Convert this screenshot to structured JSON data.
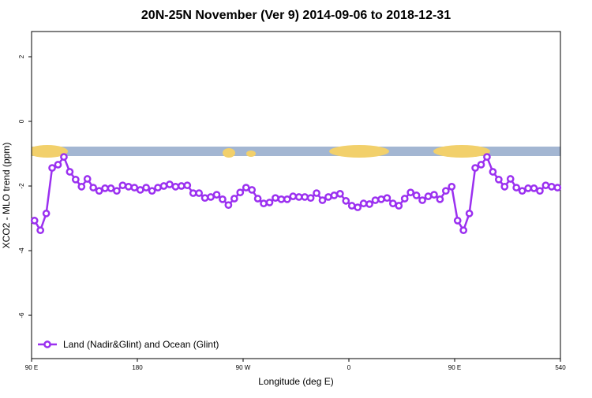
{
  "chart_data": {
    "type": "line",
    "title": "20N-25N November (Ver 9)   2014-09-06 to 2018-12-31",
    "x_label": "Longitude (deg E)",
    "y_label": "XCO2 - MLO trend (ppm)",
    "x": [
      92.5,
      97.5,
      102.5,
      107.5,
      112.5,
      117.5,
      122.5,
      127.5,
      132.5,
      137.5,
      142.5,
      147.5,
      152.5,
      157.5,
      162.5,
      167.5,
      172.5,
      177.5,
      182.5,
      187.5,
      192.5,
      197.5,
      202.5,
      207.5,
      212.5,
      217.5,
      222.5,
      227.5,
      232.5,
      237.5,
      242.5,
      247.5,
      252.5,
      257.5,
      262.5,
      267.5,
      272.5,
      277.5,
      282.5,
      287.5,
      292.5,
      297.5,
      302.5,
      307.5,
      312.5,
      317.5,
      322.5,
      327.5,
      332.5,
      337.5,
      342.5,
      347.5,
      352.5,
      357.5,
      362.5,
      367.5,
      372.5,
      377.5,
      382.5,
      387.5,
      392.5,
      397.5,
      402.5,
      407.5,
      412.5,
      417.5,
      422.5,
      427.5,
      432.5,
      437.5,
      442.5,
      447.5,
      452.5,
      457.5,
      462.5,
      467.5,
      472.5,
      477.5,
      482.5,
      487.5,
      492.5,
      497.5,
      502.5,
      507.5,
      512.5,
      517.5,
      522.5,
      527.5,
      532.5,
      537.5
    ],
    "series": [
      {
        "name": "Land (Nadir&Glint) and Ocean (Glint)",
        "color": "#9b30f0",
        "values": [
          -3.07,
          -3.37,
          -2.85,
          -1.44,
          -1.34,
          -1.1,
          -1.56,
          -1.8,
          -2.02,
          -1.78,
          -2.05,
          -2.15,
          -2.07,
          -2.07,
          -2.15,
          -1.98,
          -2.02,
          -2.05,
          -2.12,
          -2.05,
          -2.15,
          -2.05,
          -2.0,
          -1.95,
          -2.02,
          -2.0,
          -1.98,
          -2.22,
          -2.22,
          -2.37,
          -2.34,
          -2.27,
          -2.41,
          -2.59,
          -2.39,
          -2.2,
          -2.05,
          -2.12,
          -2.39,
          -2.54,
          -2.51,
          -2.37,
          -2.41,
          -2.41,
          -2.32,
          -2.34,
          -2.34,
          -2.37,
          -2.22,
          -2.44,
          -2.34,
          -2.29,
          -2.24,
          -2.46,
          -2.61,
          -2.66,
          -2.54,
          -2.56,
          -2.44,
          -2.41,
          -2.37,
          -2.54,
          -2.61,
          -2.39,
          -2.2,
          -2.29,
          -2.44,
          -2.32,
          -2.27,
          -2.41,
          -2.15,
          -2.02,
          -3.07,
          -3.37,
          -2.85,
          -1.44,
          -1.34,
          -1.1,
          -1.56,
          -1.8,
          -2.02,
          -1.78,
          -2.05,
          -2.15,
          -2.07,
          -2.07,
          -2.15,
          -1.98,
          -2.02,
          -2.05
        ]
      }
    ],
    "xlim": [
      90,
      540
    ],
    "xticks": [
      {
        "value": 90,
        "label": "90 E"
      },
      180,
      {
        "value": 270,
        "label": "90 W"
      },
      {
        "value": 360,
        "label": "0"
      },
      {
        "value": 450,
        "label": "90 E"
      },
      540
    ],
    "ylim": [
      -7.34,
      2.78
    ],
    "yticks": [
      2,
      0,
      -2,
      -4,
      -6
    ],
    "legend": "bottom-left"
  }
}
